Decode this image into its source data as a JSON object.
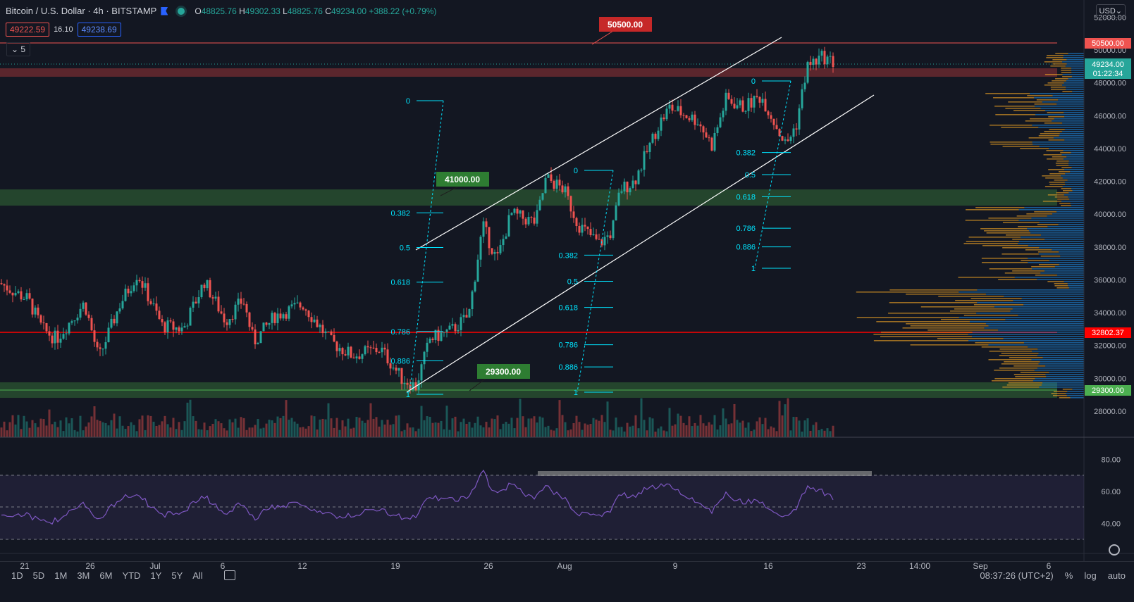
{
  "header": {
    "symbol": "Bitcoin / U.S. Dollar",
    "interval": "4h",
    "exchange": "BITSTAMP",
    "open_label": "O",
    "open": "48825.76",
    "high_label": "H",
    "high": "49302.33",
    "low_label": "L",
    "low": "48825.76",
    "close_label": "C",
    "close": "49234.00",
    "change": "+388.22 (+0.79%)",
    "bid": "49222.59",
    "spread": "16.10",
    "ask": "49238.69",
    "indicator_count": "5",
    "currency": "USD"
  },
  "colors": {
    "up": "#26a69a",
    "down": "#ef5350",
    "fib": "#00e5ff",
    "bg": "#131722",
    "rsi": "#7e57c2"
  },
  "price_axis": [
    "52000.00",
    "50000.00",
    "48000.00",
    "46000.00",
    "44000.00",
    "42000.00",
    "40000.00",
    "38000.00",
    "36000.00",
    "34000.00",
    "32000.00",
    "30000.00",
    "28000.00"
  ],
  "price_tags": {
    "level_50500": "50500.00",
    "current": "49234.00",
    "countdown": "01:22:34",
    "level_32802": "32802.37",
    "level_29300": "29300.00"
  },
  "chart_labels": {
    "l50500": "50500.00",
    "l41000": "41000.00",
    "l29300": "29300.00"
  },
  "fib_sets": [
    {
      "levels": [
        "0",
        "0.382",
        "0.5",
        "0.618",
        "0.786",
        "0.886",
        "1"
      ]
    },
    {
      "levels": [
        "0",
        "0.382",
        "0.5",
        "0.618",
        "0.786",
        "0.886",
        "1"
      ]
    },
    {
      "levels": [
        "0",
        "0.382",
        "0.5",
        "0.618",
        "0.786",
        "0.886",
        "1"
      ]
    }
  ],
  "rsi_axis": [
    "80.00",
    "60.00",
    "40.00"
  ],
  "time_axis": [
    "21",
    "26",
    "Jul",
    "6",
    "12",
    "19",
    "26",
    "Aug",
    "9",
    "16",
    "23",
    "14:00",
    "Sep",
    "6"
  ],
  "bottom_bar": {
    "ranges": [
      "1D",
      "5D",
      "1M",
      "3M",
      "6M",
      "YTD",
      "1Y",
      "5Y",
      "All"
    ],
    "clock": "08:37:26 (UTC+2)",
    "percent": "%",
    "log": "log",
    "auto": "auto"
  }
}
